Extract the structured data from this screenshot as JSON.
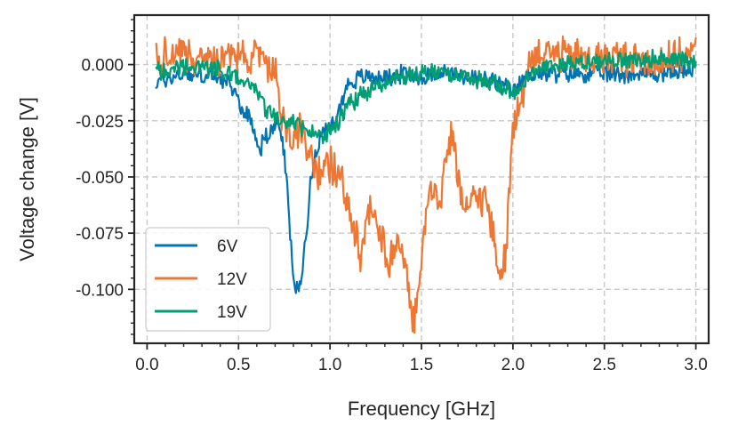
{
  "chart_data": {
    "type": "line",
    "title": "",
    "xlabel": "Frequency [GHz]",
    "ylabel": "Voltage change [V]",
    "xlim": [
      -0.07,
      3.07
    ],
    "ylim": [
      -0.124,
      0.022
    ],
    "xticks": [
      0.0,
      0.5,
      1.0,
      1.5,
      2.0,
      2.5,
      3.0
    ],
    "xtick_labels": [
      "0.0",
      "0.5",
      "1.0",
      "1.5",
      "2.0",
      "2.5",
      "3.0"
    ],
    "yticks": [
      0.0,
      -0.025,
      -0.05,
      -0.075,
      -0.1
    ],
    "ytick_labels": [
      "0.000",
      "-0.025",
      "-0.050",
      "-0.075",
      "-0.100"
    ],
    "grid": true,
    "legend_position": "bottom-left",
    "series": [
      {
        "name": "6V",
        "color": "#0173b2",
        "noise": 0.0035,
        "x": [
          0.05,
          0.2,
          0.4,
          0.48,
          0.52,
          0.57,
          0.6,
          0.62,
          0.64,
          0.68,
          0.72,
          0.75,
          0.77,
          0.79,
          0.81,
          0.83,
          0.85,
          0.87,
          0.89,
          0.92,
          0.95,
          0.98,
          1.0,
          1.05,
          1.1,
          1.2,
          1.3,
          1.4,
          1.5,
          1.6,
          1.7,
          1.8,
          1.9,
          1.95,
          2.0,
          2.03,
          2.06,
          2.1,
          2.2,
          2.4,
          2.6,
          2.8,
          2.9,
          3.0
        ],
        "y": [
          -0.008,
          -0.004,
          -0.006,
          -0.012,
          -0.02,
          -0.025,
          -0.033,
          -0.038,
          -0.032,
          -0.03,
          -0.025,
          -0.04,
          -0.06,
          -0.085,
          -0.1,
          -0.101,
          -0.09,
          -0.075,
          -0.055,
          -0.04,
          -0.03,
          -0.03,
          -0.028,
          -0.02,
          -0.008,
          -0.005,
          -0.006,
          -0.004,
          -0.006,
          -0.003,
          -0.005,
          -0.006,
          -0.008,
          -0.01,
          -0.012,
          -0.01,
          -0.006,
          -0.004,
          -0.004,
          -0.004,
          -0.004,
          -0.004,
          -0.003,
          -0.002
        ]
      },
      {
        "name": "12V",
        "color": "#ee7733",
        "noise": 0.007,
        "x": [
          0.05,
          0.15,
          0.3,
          0.45,
          0.55,
          0.62,
          0.66,
          0.7,
          0.72,
          0.76,
          0.8,
          0.84,
          0.88,
          0.92,
          0.97,
          1.02,
          1.08,
          1.13,
          1.17,
          1.22,
          1.27,
          1.32,
          1.37,
          1.42,
          1.45,
          1.47,
          1.5,
          1.55,
          1.6,
          1.63,
          1.67,
          1.7,
          1.75,
          1.8,
          1.85,
          1.9,
          1.93,
          1.96,
          1.99,
          2.02,
          2.06,
          2.1,
          2.2,
          2.4,
          2.6,
          2.75,
          2.85,
          2.95,
          3.0
        ],
        "y": [
          0.003,
          0.005,
          0.002,
          0.004,
          0.003,
          0.006,
          -0.004,
          0.002,
          -0.02,
          -0.028,
          -0.035,
          -0.025,
          -0.04,
          -0.05,
          -0.045,
          -0.045,
          -0.055,
          -0.07,
          -0.088,
          -0.06,
          -0.073,
          -0.09,
          -0.075,
          -0.095,
          -0.113,
          -0.112,
          -0.085,
          -0.05,
          -0.065,
          -0.04,
          -0.03,
          -0.055,
          -0.065,
          -0.058,
          -0.06,
          -0.08,
          -0.095,
          -0.085,
          -0.04,
          -0.02,
          -0.01,
          0.005,
          0.005,
          0.003,
          0.003,
          0.002,
          0.002,
          0.004,
          0.005
        ]
      },
      {
        "name": "19V",
        "color": "#029e73",
        "noise": 0.0035,
        "x": [
          0.05,
          0.2,
          0.4,
          0.55,
          0.6,
          0.65,
          0.7,
          0.75,
          0.8,
          0.85,
          0.9,
          0.95,
          1.0,
          1.05,
          1.1,
          1.2,
          1.3,
          1.4,
          1.5,
          1.6,
          1.7,
          1.8,
          1.9,
          1.95,
          2.0,
          2.05,
          2.1,
          2.2,
          2.4,
          2.6,
          2.8,
          2.9,
          3.0
        ],
        "y": [
          -0.003,
          -0.001,
          -0.002,
          -0.008,
          -0.012,
          -0.02,
          -0.024,
          -0.026,
          -0.025,
          -0.028,
          -0.03,
          -0.032,
          -0.03,
          -0.025,
          -0.018,
          -0.012,
          -0.008,
          -0.006,
          -0.004,
          -0.004,
          -0.005,
          -0.007,
          -0.008,
          -0.01,
          -0.012,
          -0.008,
          -0.004,
          0.0,
          0.001,
          0.002,
          0.003,
          0.002,
          0.001
        ]
      }
    ]
  }
}
